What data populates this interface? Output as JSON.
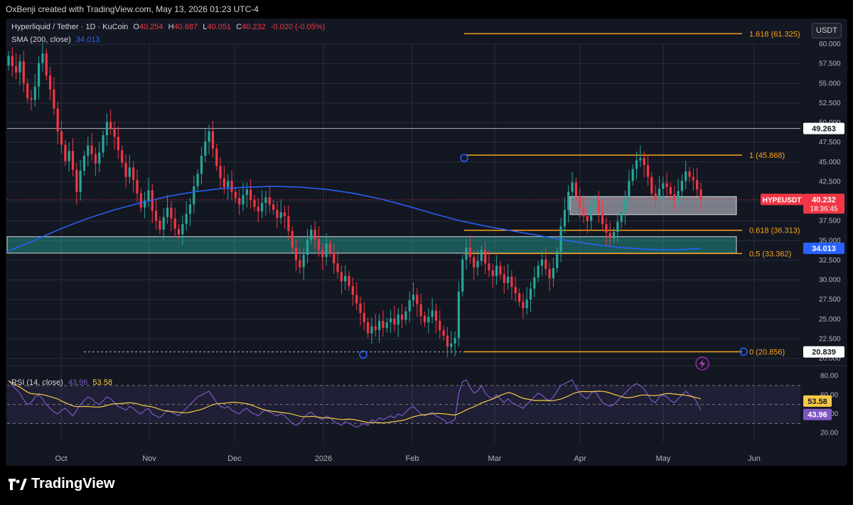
{
  "header": {
    "credit": "OxBenji created with TradingView.com, May 13, 2026 01:23 UTC-4"
  },
  "legend": {
    "symbol": "Hyperliquid / Tether · 1D · KuCoin",
    "o_label": "O",
    "o": "40.254",
    "h_label": "H",
    "h": "40.687",
    "l_label": "L",
    "l": "40.051",
    "c_label": "C",
    "c": "40.232",
    "change": "-0.020 (-0.05%)",
    "sma_label": "SMA (200, close)",
    "sma_value": "34.013",
    "rsi_label": "RSI (14, close)",
    "rsi_value": "43.96",
    "rsi_ma_value": "53.58"
  },
  "currency_button": "USDT",
  "footer": {
    "brand": "TradingView"
  },
  "colors": {
    "up": "#26a69a",
    "down": "#f23645",
    "sma": "#2962ff",
    "fib": "#f7a21b",
    "rsi": "#7e57c2",
    "rsi_ma": "#f7c948",
    "bg": "#131722",
    "grid": "#2a2e39"
  },
  "chart_data": {
    "type": "candlestick",
    "symbol": "HYPEUSDT",
    "timeframe": "1D",
    "price_axis": {
      "min": 20,
      "max": 60,
      "ticks": [
        "60.000",
        "57.500",
        "55.000",
        "52.500",
        "50.000",
        "47.500",
        "45.000",
        "42.500",
        "40.000",
        "37.500",
        "35.000",
        "32.500",
        "30.000",
        "27.500",
        "25.000",
        "22.500",
        "20.000"
      ]
    },
    "time_axis": {
      "labels": [
        "Oct",
        "Nov",
        "Dec",
        "2026",
        "Feb",
        "Mar",
        "Apr",
        "May",
        "Jun"
      ]
    },
    "last_price": {
      "label": "HYPEUSDT",
      "value": "40.232",
      "countdown": "18:36:45"
    },
    "horizontal_line": {
      "value": "49.263"
    },
    "support_line": {
      "value": "20.839"
    },
    "fib_levels": [
      {
        "label": "1.618 (61.325)",
        "value": 61.325
      },
      {
        "label": "1 (45.868)",
        "value": 45.868
      },
      {
        "label": "0.618 (36.313)",
        "value": 36.313
      },
      {
        "label": "0.5 (33.362)",
        "value": 33.362
      },
      {
        "label": "0 (20.856)",
        "value": 20.856
      }
    ],
    "zones": [
      {
        "name": "teal-support-zone",
        "from": 33.4,
        "to": 35.5
      },
      {
        "name": "grey-consolidation-zone",
        "from": 38.3,
        "to": 40.6
      }
    ],
    "sma": {
      "name": "SMA (200, close)",
      "value": "34.013"
    },
    "close_series": [
      58.5,
      57.2,
      56.4,
      57.8,
      55.0,
      53.1,
      52.9,
      54.6,
      57.6,
      58.8,
      56.0,
      54.2,
      51.8,
      48.9,
      47.2,
      45.1,
      46.4,
      44.0,
      41.2,
      43.9,
      45.8,
      47.1,
      46.0,
      44.8,
      46.2,
      48.4,
      50.1,
      49.3,
      48.2,
      46.5,
      44.9,
      43.1,
      44.3,
      42.7,
      41.0,
      39.2,
      40.1,
      41.4,
      38.8,
      37.5,
      36.4,
      38.0,
      39.2,
      37.8,
      36.5,
      35.8,
      37.1,
      38.4,
      39.6,
      41.9,
      43.5,
      45.8,
      47.6,
      48.9,
      46.7,
      44.5,
      42.9,
      41.8,
      42.6,
      41.2,
      40.4,
      39.6,
      40.8,
      41.5,
      40.2,
      39.3,
      38.7,
      39.8,
      40.5,
      39.6,
      38.9,
      37.9,
      38.6,
      38.1,
      36.2,
      34.1,
      32.5,
      31.6,
      33.2,
      35.1,
      36.4,
      35.2,
      33.8,
      32.9,
      34.6,
      33.5,
      32.1,
      31.0,
      29.8,
      30.5,
      29.2,
      28.1,
      27.0,
      25.8,
      24.6,
      23.2,
      24.1,
      23.6,
      24.8,
      23.9,
      24.6,
      25.1,
      24.3,
      25.6,
      24.9,
      26.0,
      27.4,
      28.1,
      26.9,
      25.4,
      24.6,
      25.3,
      26.1,
      24.8,
      23.6,
      22.9,
      21.5,
      21.9,
      22.6,
      28.5,
      32.6,
      34.1,
      32.9,
      31.6,
      32.4,
      33.8,
      32.1,
      31.2,
      30.5,
      31.8,
      30.7,
      29.6,
      30.4,
      29.1,
      28.3,
      27.2,
      26.4,
      27.5,
      28.9,
      30.3,
      31.8,
      32.6,
      31.4,
      30.2,
      31.5,
      33.6,
      36.8,
      38.9,
      41.2,
      42.4,
      40.6,
      39.2,
      38.1,
      37.5,
      39.4,
      40.2,
      38.6,
      37.1,
      36.0,
      35.3,
      36.1,
      37.4,
      38.6,
      40.5,
      42.6,
      44.1,
      45.2,
      45.5,
      44.6,
      43.1,
      41.0,
      40.2,
      41.6,
      42.3,
      41.8,
      40.9,
      40.2,
      41.3,
      42.6,
      43.8,
      43.1,
      42.7,
      41.5,
      40.232
    ],
    "rsi": {
      "name": "RSI (14, close)",
      "value": "43.96",
      "ma_value": "53.58",
      "axis_ticks": [
        "80.00",
        "60.00",
        "40.00",
        "20.00"
      ],
      "band": [
        30,
        70
      ],
      "series": [
        75,
        70,
        66,
        62,
        55,
        50,
        52,
        58,
        60,
        56,
        50,
        46,
        42,
        40,
        44,
        46,
        42,
        38,
        44,
        50,
        54,
        58,
        56,
        52,
        50,
        54,
        58,
        56,
        52,
        48,
        46,
        44,
        48,
        46,
        42,
        40,
        44,
        46,
        40,
        38,
        36,
        40,
        44,
        42,
        40,
        38,
        42,
        46,
        50,
        54,
        58,
        60,
        62,
        64,
        58,
        52,
        48,
        46,
        48,
        44,
        42,
        40,
        44,
        46,
        42,
        40,
        38,
        42,
        44,
        42,
        40,
        38,
        40,
        38,
        34,
        30,
        28,
        30,
        36,
        40,
        42,
        38,
        36,
        34,
        38,
        36,
        32,
        30,
        28,
        32,
        30,
        28,
        26,
        28,
        30,
        28,
        34,
        32,
        36,
        34,
        36,
        38,
        36,
        40,
        38,
        42,
        46,
        48,
        44,
        40,
        38,
        40,
        42,
        38,
        36,
        34,
        30,
        32,
        34,
        62,
        74,
        76,
        68,
        62,
        64,
        70,
        62,
        58,
        56,
        60,
        56,
        52,
        56,
        52,
        50,
        48,
        46,
        50,
        54,
        58,
        62,
        60,
        56,
        54,
        58,
        64,
        70,
        72,
        74,
        76,
        68,
        62,
        58,
        56,
        62,
        64,
        58,
        52,
        50,
        48,
        50,
        54,
        58,
        62,
        66,
        70,
        72,
        70,
        66,
        60,
        54,
        52,
        58,
        60,
        58,
        54,
        52,
        56,
        60,
        64,
        60,
        58,
        52,
        43.96
      ]
    }
  }
}
